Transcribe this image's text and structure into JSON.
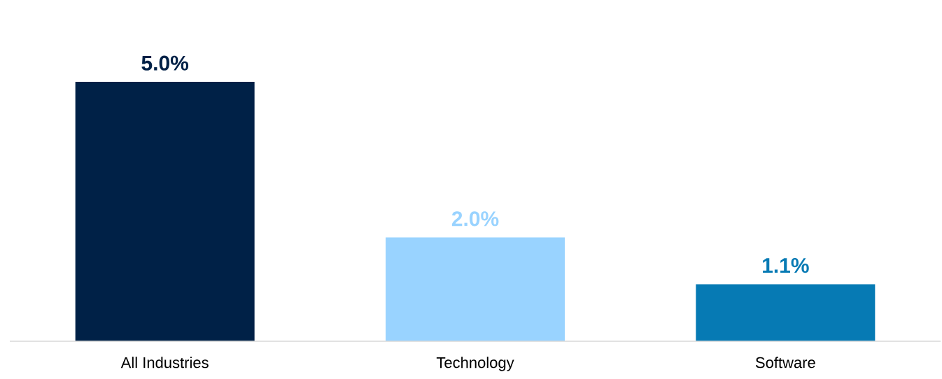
{
  "chart_data": {
    "type": "bar",
    "categories": [
      "All Industries",
      "Technology",
      "Software"
    ],
    "values": [
      5.0,
      2.0,
      1.1
    ],
    "colors": [
      "#002147",
      "#99d3ff",
      "#067ab4"
    ],
    "value_labels": [
      "5.0%",
      "2.0%",
      "1.1%"
    ]
  }
}
